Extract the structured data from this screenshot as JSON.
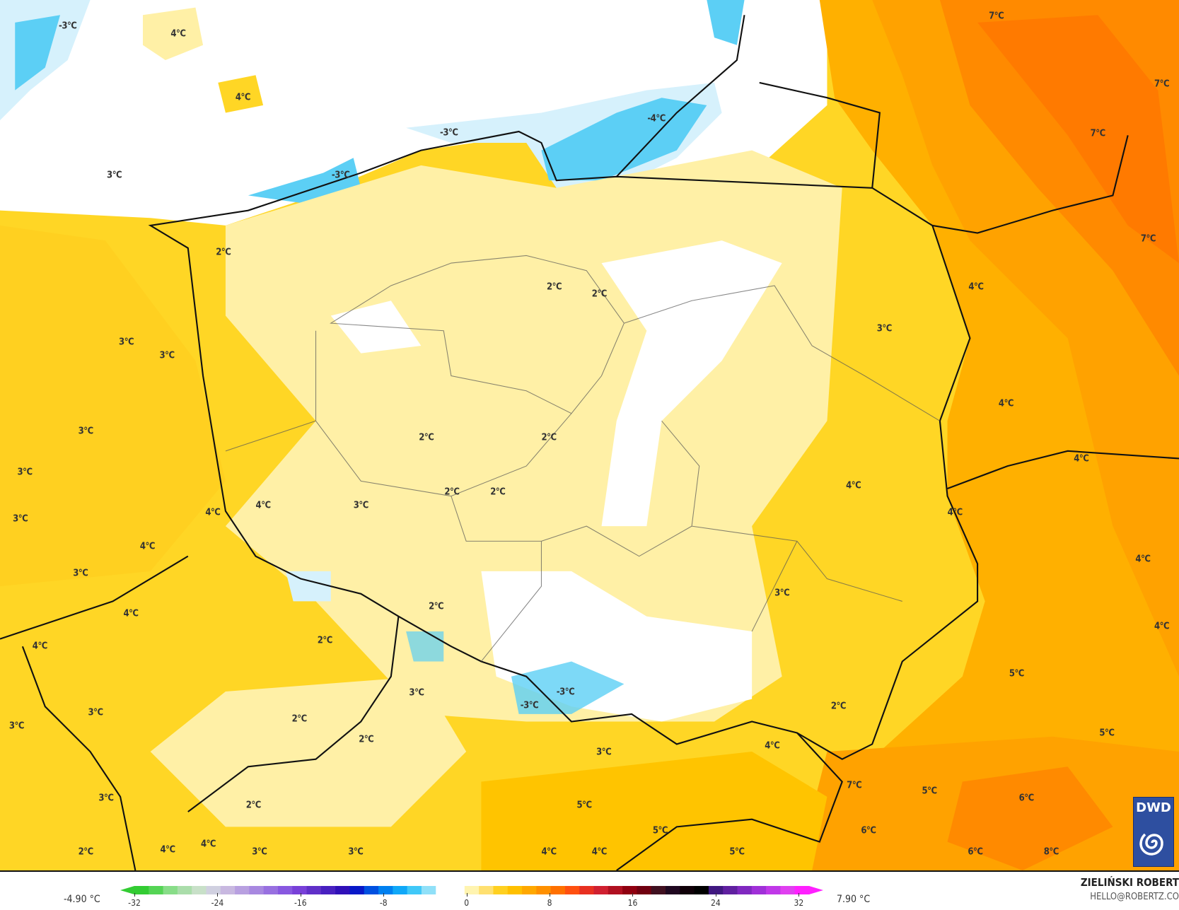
{
  "map": {
    "labels": [
      "-3°C",
      "4°C",
      "4°C",
      "3°C",
      "-3°C",
      "-3°C",
      "-4°C",
      "7°C",
      "7°C",
      "7°C",
      "7°C",
      "2°C",
      "2°C",
      "2°C",
      "4°C",
      "3°C",
      "3°C",
      "3°C",
      "4°C",
      "3°C",
      "2°C",
      "2°C",
      "3°C",
      "4°C",
      "4°C",
      "2°C",
      "2°C",
      "3°C",
      "4°C",
      "4°C",
      "3°C",
      "4°C",
      "4°C",
      "4°C",
      "3°C",
      "3°C",
      "2°C",
      "4°C",
      "4°C",
      "4°C",
      "2°C",
      "5°C",
      "3°C",
      "-3°C",
      "-3°C",
      "2°C",
      "3°C",
      "2°C",
      "3°C",
      "5°C",
      "2°C",
      "3°C",
      "4°C",
      "7°C",
      "5°C",
      "6°C",
      "3°C",
      "2°C",
      "5°C",
      "5°C",
      "6°C",
      "2°C",
      "4°C",
      "4°C",
      "3°C",
      "3°C",
      "4°C",
      "4°C",
      "5°C",
      "6°C",
      "8°C"
    ],
    "colors": {
      "cold_blue": "#5ccff5",
      "light_blue": "#d6f1fc",
      "white": "#ffffff",
      "pale_yellow": "#fff0a6",
      "yellow": "#ffd625",
      "gold": "#ffc400",
      "orange": "#ffa200",
      "dark_orange": "#ff8000"
    }
  },
  "logo": {
    "text": "DWD"
  },
  "colorbar": {
    "min_label": "-4.90 °C",
    "max_label": "7.90 °C",
    "ticks": [
      "-32",
      "-24",
      "-16",
      "-8",
      "0",
      "8",
      "16",
      "24",
      "32"
    ],
    "range": [
      -32,
      33
    ],
    "colors": [
      "#33cc33",
      "#55d455",
      "#88dd88",
      "#aaddaa",
      "#c8e0c8",
      "#d0d0e0",
      "#c8b8e0",
      "#b8a0e0",
      "#a888e0",
      "#9870e0",
      "#8858e0",
      "#7840d8",
      "#6030c8",
      "#4820c0",
      "#3010b8",
      "#0818c8",
      "#0050e0",
      "#0080f0",
      "#10a8f8",
      "#40c8f8",
      "#90e0f8",
      "#ffffff",
      "#ffffff",
      "#fff4b0",
      "#ffe070",
      "#ffd020",
      "#ffc000",
      "#ffa800",
      "#ff9000",
      "#ff7000",
      "#ff5010",
      "#e83020",
      "#d02030",
      "#b01020",
      "#900010",
      "#700010",
      "#401020",
      "#200820",
      "#100008",
      "#000000",
      "#401880",
      "#6020a0",
      "#8028c0",
      "#a030d8",
      "#c038e8",
      "#e040f0",
      "#ff20ff"
    ]
  },
  "credits": {
    "author": "ZIELIŃSKI ROBERT",
    "email": "HELLO@ROBERTZ.CO"
  }
}
